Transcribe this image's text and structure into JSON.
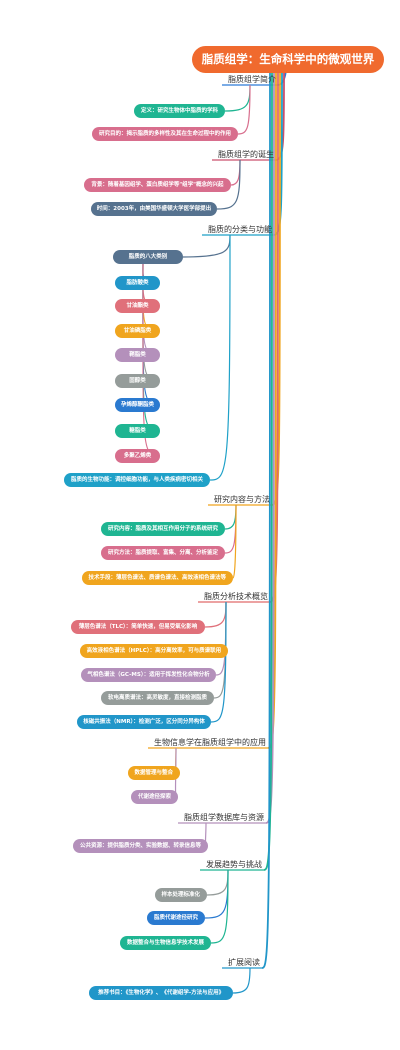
{
  "root": "脂质组学：生命科学中的微观世界",
  "branches": [
    {
      "label": "脂质组学简介",
      "color": "#2c7ad6",
      "children": [
        {
          "text": "定义：研究生物体中脂质的学科",
          "color": "#1fb592"
        },
        {
          "text": "研究目的：揭示脂质的多样性及其在生命过程中的作用",
          "color": "#d86e8d"
        }
      ]
    },
    {
      "label": "脂质组学的诞生",
      "color": "#c9506e",
      "children": [
        {
          "text": "背景：随着基因组学、蛋白质组学等\"组学\"概念的兴起",
          "color": "#d86e8d"
        },
        {
          "text": "时间：2003年，由美国华盛顿大学医学部提出",
          "color": "#56728f"
        }
      ]
    },
    {
      "label": "脂质的分类与功能",
      "color": "#1fa1c8",
      "children": [
        {
          "text": "脂质的八大类别",
          "color": "#56728f",
          "children": [
            {
              "text": "脂肪酸类",
              "color": "#2196c9"
            },
            {
              "text": "甘油酯类",
              "color": "#e0707a"
            },
            {
              "text": "甘油磷脂类",
              "color": "#f0a51e"
            },
            {
              "text": "鞘脂类",
              "color": "#b490bb"
            },
            {
              "text": "固醇类",
              "color": "#959c9a"
            },
            {
              "text": "孕烯醇酮脂类",
              "color": "#2a7ad0"
            },
            {
              "text": "糖脂类",
              "color": "#1fb592"
            },
            {
              "text": "多聚乙烯类",
              "color": "#d86e8d"
            }
          ]
        },
        {
          "text": "脂质的生物功能：调控细胞功能，与人类疾病密切相关",
          "color": "#1fa1c8"
        }
      ]
    },
    {
      "label": "研究内容与方法",
      "color": "#f0a51e",
      "children": [
        {
          "text": "研究内容：脂质及其相互作用分子的系统研究",
          "color": "#1fb592"
        },
        {
          "text": "研究方法：脂质提取、富集、分离、分析鉴定",
          "color": "#d86e8d"
        },
        {
          "text": "技术手段：薄层色谱法、质谱色谱法、高效液相色谱法等",
          "color": "#f0a51e"
        }
      ]
    },
    {
      "label": "脂质分析技术概览",
      "color": "#e06a6a",
      "children": [
        {
          "text": "薄层色谱法（TLC）：简单快速，但易受氧化影响",
          "color": "#e0707a"
        },
        {
          "text": "高效液相色谱法（HPLC）：高分离效率，可与质谱联用",
          "color": "#f0a51e"
        },
        {
          "text": "气相色谱法（GC-MS）：适用于挥发性化合物分析",
          "color": "#b490bb"
        },
        {
          "text": "软电离质谱法：高灵敏度，直接检测脂质",
          "color": "#959c9a"
        },
        {
          "text": "核磁共振法（NMR）：检测广泛，区分同分异构体",
          "color": "#2196c9"
        }
      ]
    },
    {
      "label": "生物信息学在脂质组学中的应用",
      "color": "#f0a51e",
      "children": [
        {
          "text": "数据管理与整合",
          "color": "#f0a51e"
        },
        {
          "text": "代谢途径探索",
          "color": "#b490bb"
        }
      ]
    },
    {
      "label": "脂质组学数据库与资源",
      "color": "#b490bb",
      "children": [
        {
          "text": "公共资源：提供脂质分类、实验数据、转录信息等",
          "color": "#b490bb"
        }
      ]
    },
    {
      "label": "发展趋势与挑战",
      "color": "#1fb592",
      "children": [
        {
          "text": "样本处理标准化",
          "color": "#959c9a"
        },
        {
          "text": "脂质代谢途径研究",
          "color": "#2a7ad0"
        },
        {
          "text": "数据整合与生物信息学技术发展",
          "color": "#1fb592"
        }
      ]
    },
    {
      "label": "扩展阅读",
      "color": "#2196c9",
      "children": [
        {
          "text": "推荐书目：《生物化学》、《代谢组学-方法与应用》",
          "color": "#2196c9"
        }
      ]
    }
  ]
}
